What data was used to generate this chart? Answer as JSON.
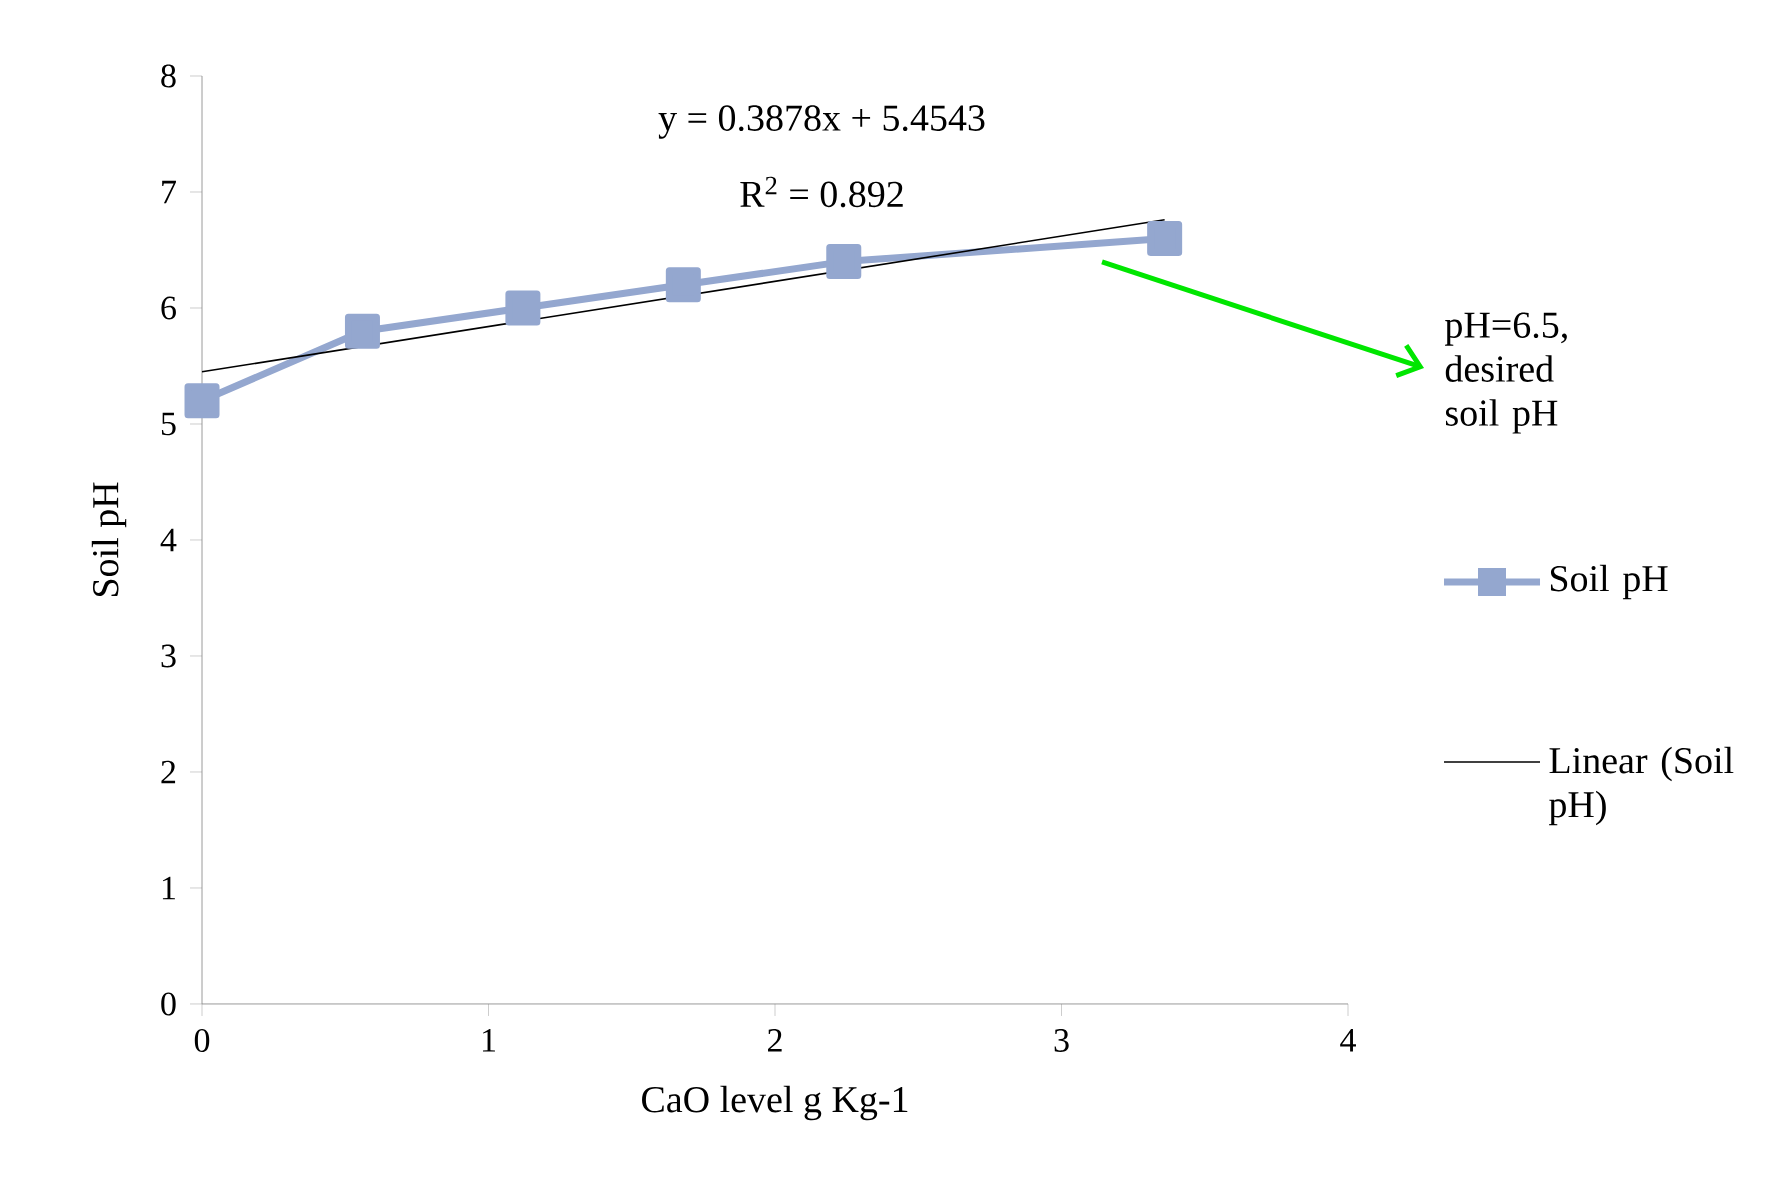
{
  "chart_data": {
    "type": "line",
    "xlabel": "CaO level g Kg-1",
    "ylabel": "Soil pH",
    "xlim": [
      0,
      4
    ],
    "xticks": [
      0,
      1,
      2,
      3,
      4
    ],
    "ylim": [
      0,
      8
    ],
    "yticks": [
      0,
      1,
      2,
      3,
      4,
      5,
      6,
      7,
      8
    ],
    "grid": false,
    "legend": "right",
    "series": [
      {
        "name": "Soil pH",
        "color": "#94a7cf",
        "marker": "square",
        "x": [
          0,
          0.56,
          1.12,
          1.68,
          2.24,
          3.36
        ],
        "values": [
          5.2,
          5.8,
          6.0,
          6.2,
          6.4,
          6.6
        ]
      },
      {
        "name": "Linear (Soil pH)",
        "color": "#000000",
        "marker": "none",
        "x": [
          0,
          3.36
        ],
        "values": [
          5.45,
          6.76
        ]
      }
    ],
    "annotations": [
      "y = 0.3878x + 5.4543",
      "R$^{2}$ = 0.892",
      "pH=6.5, desired soil pH"
    ]
  }
}
